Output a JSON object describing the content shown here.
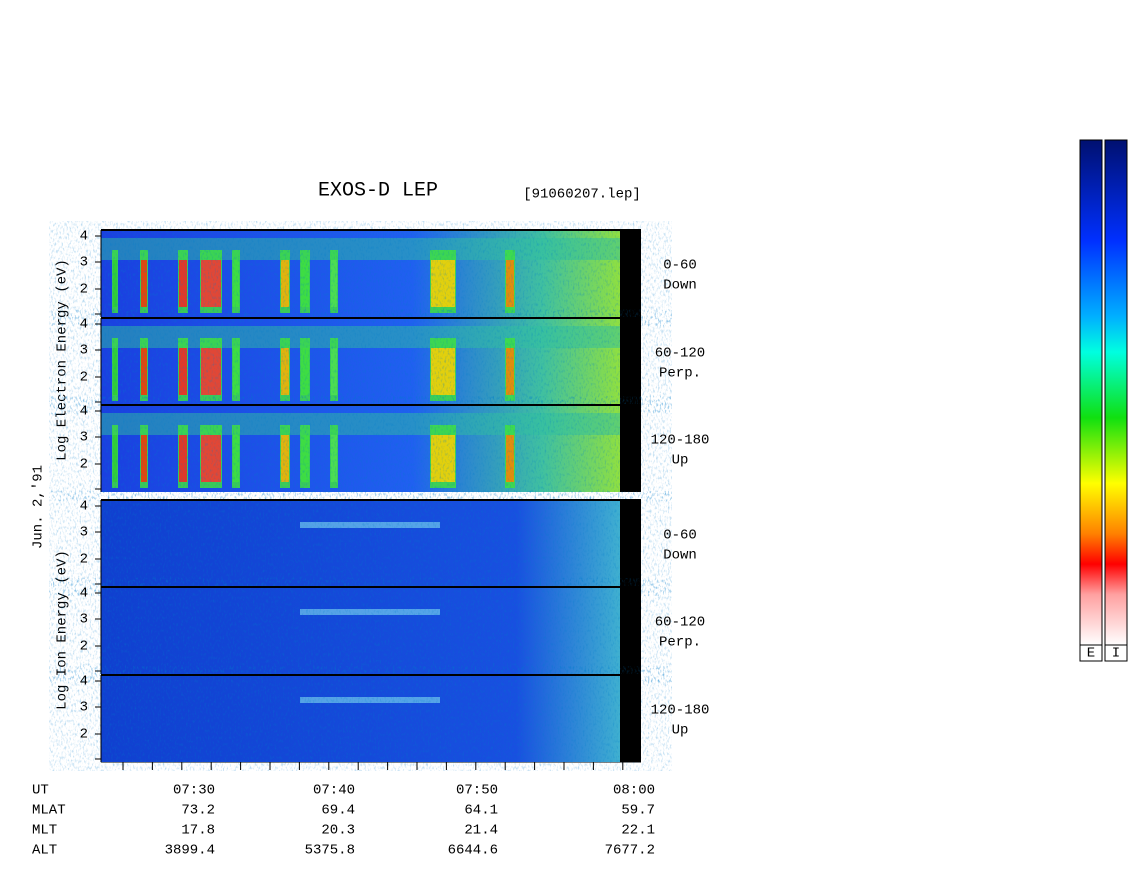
{
  "title": "EXOS-D LEP",
  "file": "[91060207.lep]",
  "date": "Jun. 2,'91",
  "electron_axis": "Log Electron Energy (eV)",
  "ion_axis": "Log Ion Energy (eV)",
  "electron_panels": [
    {
      "range": "0-60",
      "direction": "Down"
    },
    {
      "range": "60-120",
      "direction": "Perp."
    },
    {
      "range": "120-180",
      "direction": "Up"
    }
  ],
  "ion_panels": [
    {
      "range": "0-60",
      "direction": "Down"
    },
    {
      "range": "60-120",
      "direction": "Perp."
    },
    {
      "range": "120-180",
      "direction": "Up"
    }
  ],
  "energy_ticks": [
    "4",
    "3",
    "2"
  ],
  "orbit": {
    "rows": [
      {
        "label": "UT",
        "values": [
          "07:30",
          "07:40",
          "07:50",
          "08:00"
        ]
      },
      {
        "label": "MLAT",
        "values": [
          "73.2",
          "69.4",
          "64.1",
          "59.7"
        ]
      },
      {
        "label": "MLT",
        "values": [
          "17.8",
          "20.3",
          "21.4",
          "22.1"
        ]
      },
      {
        "label": "ALT",
        "values": [
          "3899.4",
          "5375.8",
          "6644.6",
          "7677.2"
        ]
      }
    ]
  },
  "colorbars": [
    "E",
    "I"
  ]
}
